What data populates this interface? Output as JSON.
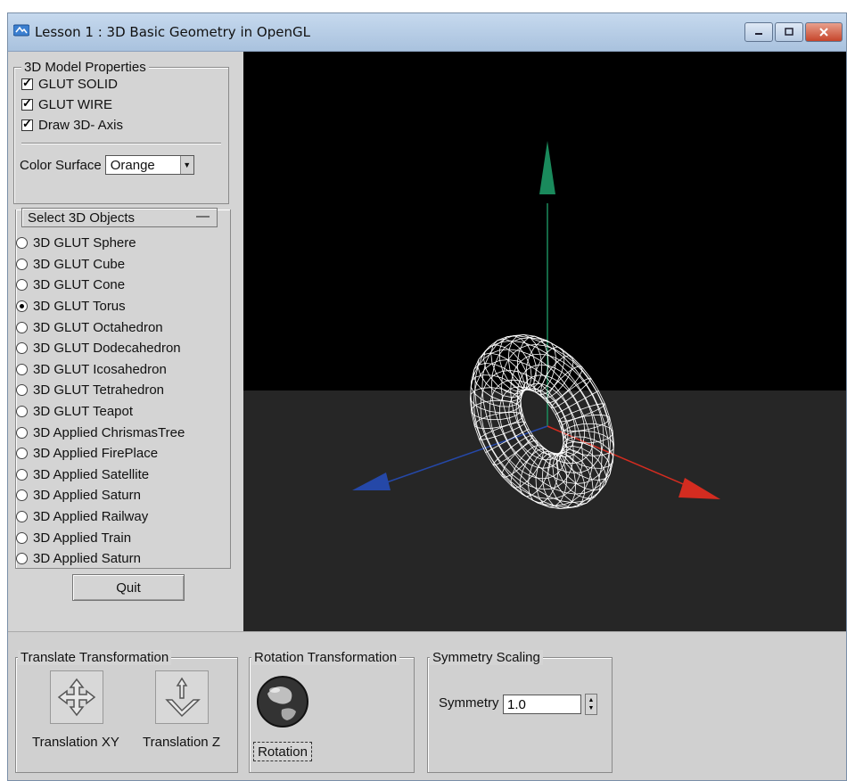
{
  "window": {
    "title": "Lesson 1 : 3D Basic Geometry in OpenGL",
    "buttons": [
      "minimize",
      "maximize",
      "close"
    ]
  },
  "model_properties": {
    "title": "3D Model Properties",
    "checkboxes": [
      {
        "label": "GLUT SOLID",
        "checked": true
      },
      {
        "label": "GLUT WIRE",
        "checked": true
      },
      {
        "label": "Draw 3D- Axis",
        "checked": true
      }
    ],
    "color_surface_label": "Color Surface",
    "color_surface_value": "Orange"
  },
  "objects": {
    "title": "Select 3D Objects",
    "collapse_symbol": "—",
    "selected_index": 3,
    "items": [
      "3D GLUT Sphere",
      "3D GLUT Cube",
      "3D GLUT Cone",
      "3D GLUT Torus",
      "3D GLUT Octahedron",
      "3D GLUT Dodecahedron",
      "3D GLUT Icosahedron",
      "3D GLUT Tetrahedron",
      "3D GLUT Teapot",
      "3D Applied ChrismasTree",
      "3D Applied FirePlace",
      "3D Applied Satellite",
      "3D Applied Saturn",
      "3D Applied Railway",
      "3D Applied Train",
      "3D Applied Saturn"
    ]
  },
  "quit_label": "Quit",
  "viewport": {
    "axis_colors": {
      "x": "#d42c20",
      "y": "#1a8a5c",
      "z": "#2548a8"
    },
    "wire_color": "#ffffff",
    "object": "torus"
  },
  "translate": {
    "title": "Translate Transformation",
    "xy_label": "Translation XY",
    "z_label": "Translation Z"
  },
  "rotation": {
    "title": "Rotation Transformation",
    "label": "Rotation"
  },
  "scaling": {
    "title": "Symmetry Scaling",
    "label": "Symmetry",
    "value": "1.0"
  }
}
